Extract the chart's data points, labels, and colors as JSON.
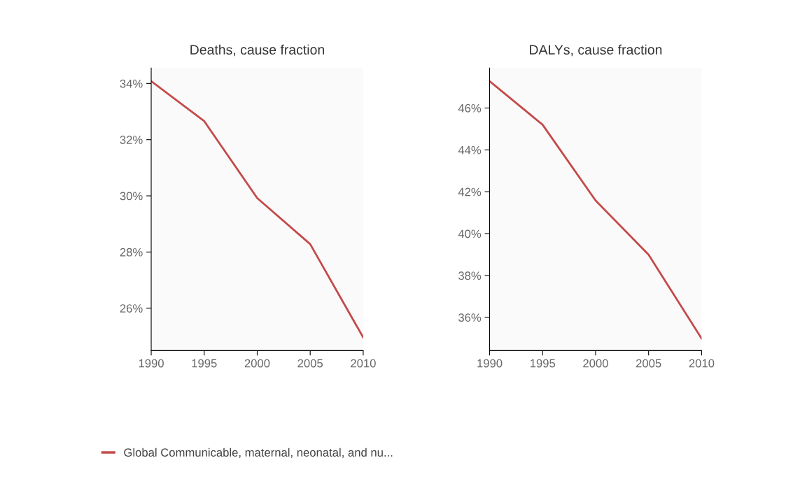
{
  "chart_data": [
    {
      "type": "line",
      "title": "Deaths, cause fraction",
      "x": [
        1990,
        1995,
        2000,
        2005,
        2010
      ],
      "series": [
        {
          "name": "Global Communicable, maternal, neonatal, and nu...",
          "color": "#c44a4a",
          "values": [
            34.08,
            32.66,
            29.92,
            28.28,
            24.96
          ]
        }
      ],
      "xlim": [
        1990,
        2010
      ],
      "xticks": [
        1990,
        1995,
        2000,
        2005,
        2010
      ],
      "ylim": [
        24.49,
        34.55
      ],
      "yticks": [
        {
          "value": 26,
          "label": "26%"
        },
        {
          "value": 28,
          "label": "28%"
        },
        {
          "value": 30,
          "label": "30%"
        },
        {
          "value": 32,
          "label": "32%"
        },
        {
          "value": 34,
          "label": "34%"
        }
      ],
      "grid": false,
      "legend": "bottom"
    },
    {
      "type": "line",
      "title": "DALYs, cause fraction",
      "x": [
        1990,
        1995,
        2000,
        2005,
        2010
      ],
      "series": [
        {
          "color": "#c44a4a",
          "values": [
            47.28,
            45.2,
            41.58,
            38.99,
            34.99
          ]
        }
      ],
      "xlim": [
        1990,
        2010
      ],
      "xticks": [
        1990,
        1995,
        2000,
        2005,
        2010
      ],
      "ylim": [
        34.41,
        47.91
      ],
      "yticks": [
        {
          "value": 36,
          "label": "36%"
        },
        {
          "value": 38,
          "label": "38%"
        },
        {
          "value": 40,
          "label": "40%"
        },
        {
          "value": 42,
          "label": "42%"
        },
        {
          "value": 44,
          "label": "44%"
        },
        {
          "value": 46,
          "label": "46%"
        }
      ],
      "grid": false
    }
  ]
}
